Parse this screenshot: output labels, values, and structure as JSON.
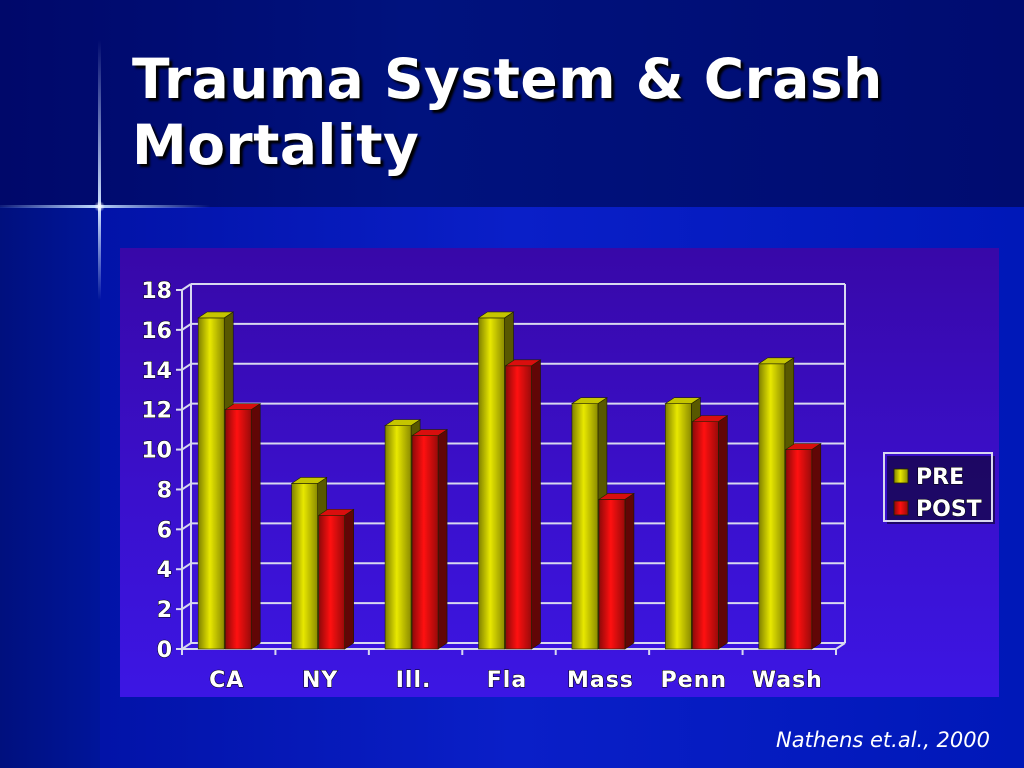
{
  "slide": {
    "title": "Trauma System & Crash Mortality",
    "citation": "Nathens et.al., 2000"
  },
  "colors": {
    "pre": "#e8e800",
    "post": "#ff1010",
    "grid": "#d8d8f0",
    "text": "#ffffff"
  },
  "chart_data": {
    "type": "bar",
    "title": "",
    "xlabel": "",
    "ylabel": "",
    "categories": [
      "CA",
      "NY",
      "Ill.",
      "Fla",
      "Mass",
      "Penn",
      "Wash"
    ],
    "series": [
      {
        "name": "PRE",
        "values": [
          16.6,
          8.3,
          11.2,
          16.6,
          12.3,
          12.3,
          14.3
        ]
      },
      {
        "name": "POST",
        "values": [
          12.0,
          6.7,
          10.7,
          14.2,
          7.5,
          11.4,
          10.0
        ]
      }
    ],
    "ylim": [
      0,
      18
    ],
    "yticks": [
      "0",
      "2",
      "4",
      "6",
      "8",
      "10",
      "12",
      "14",
      "16",
      "18"
    ],
    "grid": true,
    "legend_position": "right",
    "style": "3d"
  }
}
